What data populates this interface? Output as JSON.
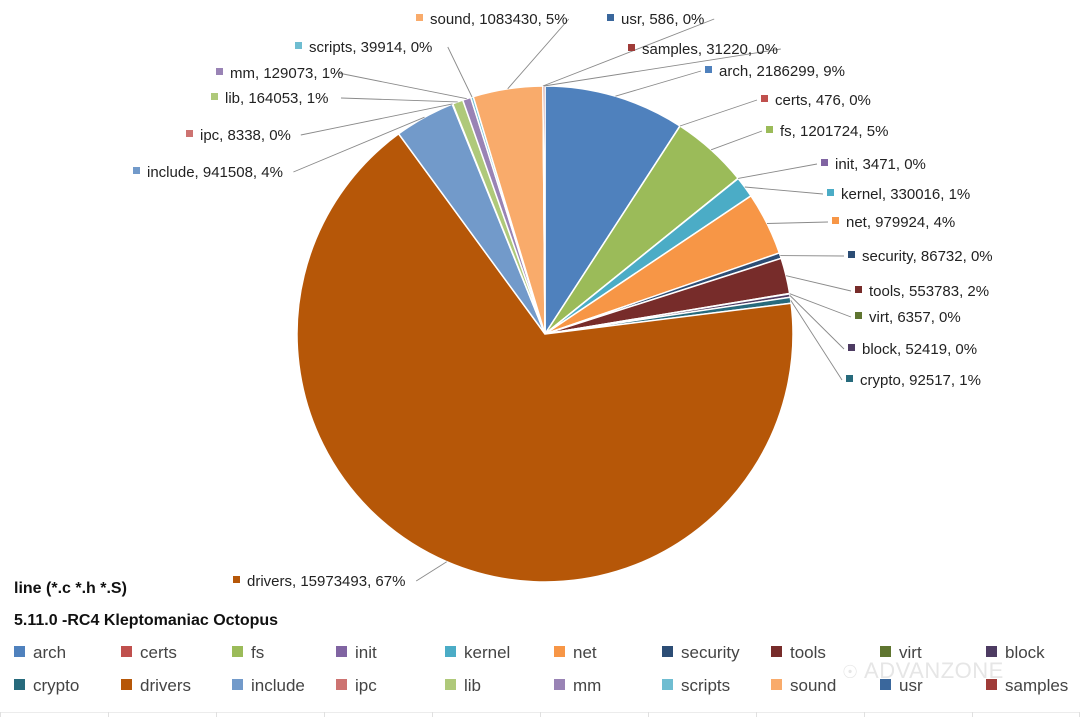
{
  "chart_data": {
    "type": "pie",
    "title": "line (*.c *.h *.S)",
    "subtitle": "5.11.0 -RC4  Kleptomaniac Octopus",
    "legend_position": "bottom",
    "slices": [
      {
        "name": "arch",
        "value": 2186299,
        "percent": "9%",
        "color": "#4f81bd"
      },
      {
        "name": "certs",
        "value": 476,
        "percent": "0%",
        "color": "#c0504d"
      },
      {
        "name": "fs",
        "value": 1201724,
        "percent": "5%",
        "color": "#9bbb59"
      },
      {
        "name": "init",
        "value": 3471,
        "percent": "0%",
        "color": "#8064a2"
      },
      {
        "name": "kernel",
        "value": 330016,
        "percent": "1%",
        "color": "#4bacc6"
      },
      {
        "name": "net",
        "value": 979924,
        "percent": "4%",
        "color": "#f79646"
      },
      {
        "name": "security",
        "value": 86732,
        "percent": "0%",
        "color": "#2c4d75"
      },
      {
        "name": "tools",
        "value": 553783,
        "percent": "2%",
        "color": "#772c2a"
      },
      {
        "name": "virt",
        "value": 6357,
        "percent": "0%",
        "color": "#5f7530"
      },
      {
        "name": "block",
        "value": 52419,
        "percent": "0%",
        "color": "#4d3b62"
      },
      {
        "name": "crypto",
        "value": 92517,
        "percent": "1%",
        "color": "#276a7c"
      },
      {
        "name": "drivers",
        "value": 15973493,
        "percent": "67%",
        "color": "#b65708"
      },
      {
        "name": "include",
        "value": 941508,
        "percent": "4%",
        "color": "#729aca"
      },
      {
        "name": "ipc",
        "value": 8338,
        "percent": "0%",
        "color": "#cd7371"
      },
      {
        "name": "lib",
        "value": 164053,
        "percent": "1%",
        "color": "#afc97a"
      },
      {
        "name": "mm",
        "value": 129073,
        "percent": "1%",
        "color": "#9983b5"
      },
      {
        "name": "scripts",
        "value": 39914,
        "percent": "0%",
        "color": "#6fbdd1"
      },
      {
        "name": "sound",
        "value": 1083430,
        "percent": "5%",
        "color": "#f9ab6b"
      },
      {
        "name": "usr",
        "value": 586,
        "percent": "0%",
        "color": "#3a679c"
      },
      {
        "name": "samples",
        "value": 31220,
        "percent": "0%",
        "color": "#9f3b38"
      }
    ]
  },
  "watermark": "ADVANZONE"
}
